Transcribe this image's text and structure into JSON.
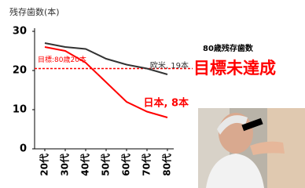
{
  "chart_data": {
    "type": "line",
    "y_label": "残存歯数(本)",
    "categories": [
      "20代",
      "30代",
      "40代",
      "50代",
      "60代",
      "70代",
      "80代"
    ],
    "series": [
      {
        "name": "欧米, 19本",
        "color": "#333333",
        "values": [
          27,
          26,
          25.5,
          23,
          21.5,
          20.5,
          19
        ]
      },
      {
        "name": "日本, 8本",
        "color": "#ff0000",
        "values": [
          26,
          25,
          22,
          17,
          12,
          9.5,
          8
        ]
      }
    ],
    "target": {
      "value": 20.5,
      "label": "目標:80歳20本",
      "color": "#ff0000"
    },
    "annotations": [
      "80歳残存歯数",
      "目標未達成"
    ],
    "ylim": [
      0,
      30
    ],
    "yticks": [
      0,
      10,
      20,
      30
    ]
  }
}
